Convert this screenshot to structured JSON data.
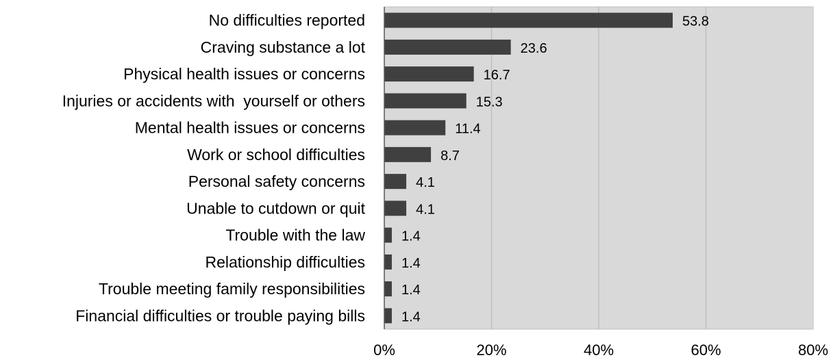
{
  "chart_data": {
    "type": "bar",
    "orientation": "horizontal",
    "title": "",
    "xlabel": "",
    "ylabel": "",
    "categories": [
      "No difficulties reported",
      "Craving substance a lot",
      "Physical health issues or concerns",
      "Injuries or accidents with  yourself or others",
      "Mental health issues or concerns",
      "Work or school difficulties",
      "Personal safety concerns",
      "Unable to cutdown or quit",
      "Trouble with the law",
      "Relationship difficulties",
      "Trouble meeting family responsibilities",
      "Financial difficulties or trouble paying bills"
    ],
    "values": [
      53.8,
      23.6,
      16.7,
      15.3,
      11.4,
      8.7,
      4.1,
      4.1,
      1.4,
      1.4,
      1.4,
      1.4
    ],
    "value_labels": [
      "53.8",
      "23.6",
      "16.7",
      "15.3",
      "11.4",
      "8.7",
      "4.1",
      "4.1",
      "1.4",
      "1.4",
      "1.4",
      "1.4"
    ],
    "xlim": [
      0,
      80
    ],
    "x_ticks": [
      0,
      20,
      40,
      60,
      80
    ],
    "x_tick_labels": [
      "0%",
      "20%",
      "40%",
      "60%",
      "80%"
    ],
    "grid": "vertical",
    "legend": "none",
    "colors": {
      "bar": "#404040",
      "plot_background": "#d9d9d9",
      "gridline": "#bfbfbf",
      "axis": "#595959"
    }
  }
}
